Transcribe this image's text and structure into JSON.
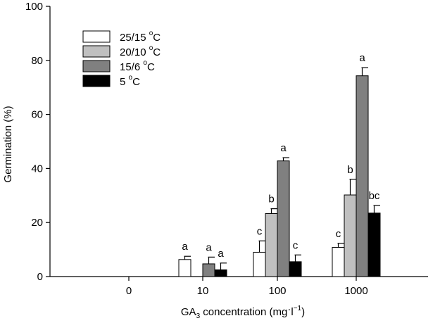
{
  "chart_data": {
    "type": "bar",
    "categories": [
      "0",
      "10",
      "100",
      "1000"
    ],
    "series": [
      {
        "name": "25/15 °C",
        "color": "#ffffff",
        "values": [
          0,
          6.3,
          9,
          10.8
        ],
        "errors": [
          0,
          1.2,
          4.2,
          1.5
        ],
        "letters": [
          "",
          "a",
          "c",
          "c"
        ]
      },
      {
        "name": "20/10 °C",
        "color": "#c0c0c0",
        "values": [
          0,
          0,
          23.3,
          30.2
        ],
        "errors": [
          0,
          0,
          1.8,
          5.8
        ],
        "letters": [
          "",
          "",
          "b",
          "b"
        ]
      },
      {
        "name": "15/6 °C",
        "color": "#808080",
        "values": [
          0,
          4.7,
          42.8,
          74.3
        ],
        "errors": [
          0,
          2.5,
          1.2,
          3
        ],
        "letters": [
          "",
          "a",
          "a",
          "a"
        ]
      },
      {
        "name": "5 °C",
        "color": "#000000",
        "values": [
          0,
          2.5,
          5.5,
          23.5
        ],
        "errors": [
          0,
          2.5,
          2.5,
          2.8
        ],
        "letters": [
          "",
          "a",
          "c",
          "bc"
        ]
      }
    ],
    "ylabel": "Germination (%)",
    "xlabel": {
      "prefix": "GA",
      "sub": "3",
      "mid": " concentration (mg",
      "dot": "·",
      "unit": "l",
      "sup": "−1",
      "suffix": ")"
    },
    "ylim": [
      0,
      100
    ],
    "yticks": [
      "0",
      "20",
      "40",
      "60",
      "80",
      "100"
    ],
    "legend_position": "top-left",
    "legend": [
      {
        "main": "25/15 ",
        "deg": "o",
        "unit": "C"
      },
      {
        "main": "20/10 ",
        "deg": "o",
        "unit": "C"
      },
      {
        "main": "15/6 ",
        "deg": "o",
        "unit": "C"
      },
      {
        "main": "5 ",
        "deg": "o",
        "unit": "C"
      }
    ]
  }
}
